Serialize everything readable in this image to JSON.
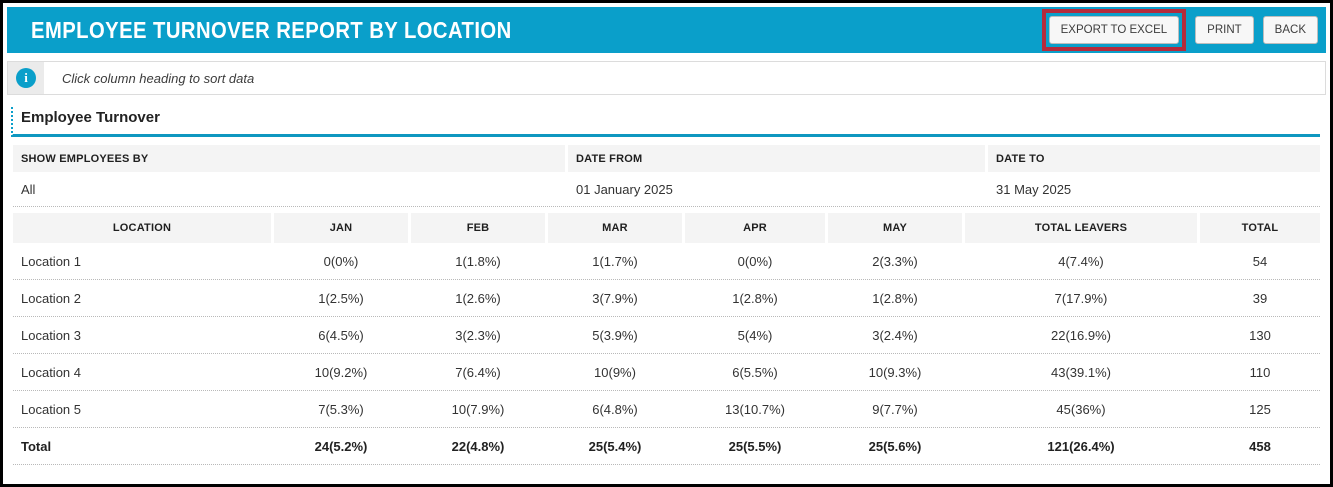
{
  "colors": {
    "accent_cyan": "#0a9fca",
    "highlight_red": "#b52b3c",
    "header_cell_gray": "#f4f4f4"
  },
  "titlebar": {
    "title": "EMPLOYEE TURNOVER REPORT BY LOCATION",
    "buttons": {
      "export": "EXPORT TO EXCEL",
      "print": "PRINT",
      "back": "BACK"
    }
  },
  "infobar": {
    "icon": "info-icon",
    "message": "Click column heading to sort data"
  },
  "report": {
    "section_title": "Employee Turnover",
    "filters": {
      "headers": [
        "SHOW EMPLOYEES BY",
        "DATE FROM",
        "DATE TO"
      ],
      "values": [
        "All",
        "01 January 2025",
        "31 May 2025"
      ]
    },
    "table": {
      "columns": [
        "LOCATION",
        "JAN",
        "FEB",
        "MAR",
        "APR",
        "MAY",
        "TOTAL LEAVERS",
        "TOTAL"
      ],
      "rows": [
        [
          "Location 1",
          "0(0%)",
          "1(1.8%)",
          "1(1.7%)",
          "0(0%)",
          "2(3.3%)",
          "4(7.4%)",
          "54"
        ],
        [
          "Location 2",
          "1(2.5%)",
          "1(2.6%)",
          "3(7.9%)",
          "1(2.8%)",
          "1(2.8%)",
          "7(17.9%)",
          "39"
        ],
        [
          "Location 3",
          "6(4.5%)",
          "3(2.3%)",
          "5(3.9%)",
          "5(4%)",
          "3(2.4%)",
          "22(16.9%)",
          "130"
        ],
        [
          "Location 4",
          "10(9.2%)",
          "7(6.4%)",
          "10(9%)",
          "6(5.5%)",
          "10(9.3%)",
          "43(39.1%)",
          "110"
        ],
        [
          "Location 5",
          "7(5.3%)",
          "10(7.9%)",
          "6(4.8%)",
          "13(10.7%)",
          "9(7.7%)",
          "45(36%)",
          "125"
        ]
      ],
      "total_row": [
        "Total",
        "24(5.2%)",
        "22(4.8%)",
        "25(5.4%)",
        "25(5.5%)",
        "25(5.6%)",
        "121(26.4%)",
        "458"
      ]
    }
  }
}
